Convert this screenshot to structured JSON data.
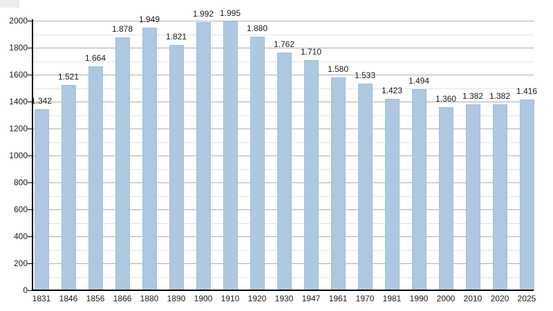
{
  "chart_data": {
    "type": "bar",
    "title": "",
    "xlabel": "",
    "ylabel": "",
    "categories": [
      "1831",
      "1846",
      "1856",
      "1866",
      "1880",
      "1890",
      "1900",
      "1910",
      "1920",
      "1930",
      "1947",
      "1961",
      "1970",
      "1981",
      "1990",
      "2000",
      "2010",
      "2020",
      "2025"
    ],
    "values": [
      1342,
      1521,
      1664,
      1878,
      1949,
      1821,
      1992,
      1995,
      1880,
      1762,
      1710,
      1580,
      1533,
      1423,
      1494,
      1360,
      1382,
      1382,
      1416
    ],
    "value_labels": [
      "1.342",
      "1.521",
      "1.664",
      "1.878",
      "1.949",
      "1.821",
      "1.992",
      "1.995",
      "1.880",
      "1.762",
      "1.710",
      "1.580",
      "1.533",
      "1.423",
      "1.494",
      "1.360",
      "1.382",
      "1.382",
      "1.416"
    ],
    "ylim": [
      0,
      2000
    ],
    "ytick_step": 200,
    "minor_gridline_step": 100,
    "ytick_labels": [
      "0",
      "200",
      "400",
      "600",
      "800",
      "1000",
      "1200",
      "1400",
      "1600",
      "1800",
      "2000"
    ],
    "grid": true,
    "legend": null,
    "colors": {
      "bar_fill": "#aec8e2",
      "bar_border": "#a3bed9",
      "major_gridline": "#b0b0b0",
      "minor_gridline": "#e4e4e4",
      "axis": "#000000",
      "text": "#1a1a1a",
      "background": "#ffffff"
    }
  }
}
